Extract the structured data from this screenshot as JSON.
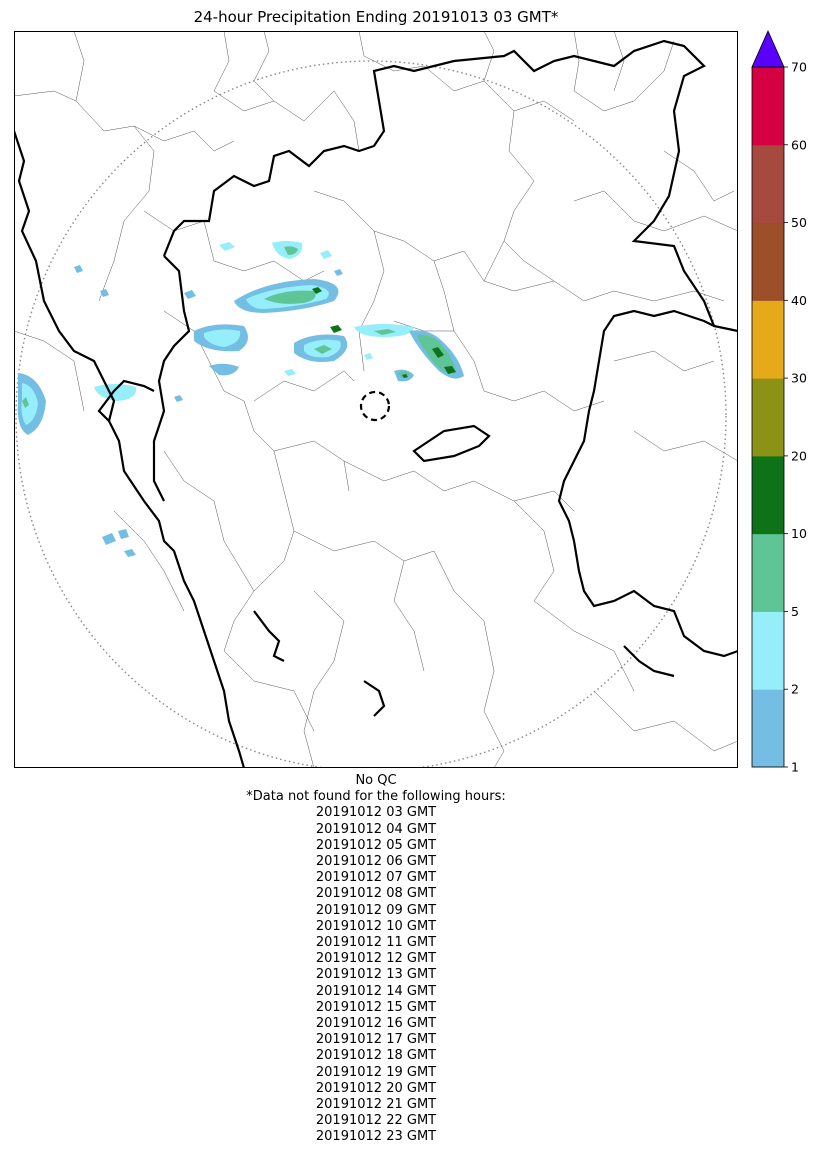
{
  "title": "24-hour Precipitation Ending 20191013 03 GMT*",
  "colorbar": {
    "levels": [
      1,
      2,
      5,
      10,
      20,
      30,
      40,
      50,
      60,
      70
    ],
    "colors": [
      "#74bde3",
      "#95eefa",
      "#5fc597",
      "#0e7318",
      "#8b9215",
      "#e6a91a",
      "#9c4f28",
      "#a64a3f",
      "#d40043"
    ],
    "extend_color": "#5a00ff",
    "tick_labels": [
      "1",
      "2",
      "5",
      "10",
      "20",
      "30",
      "40",
      "50",
      "60",
      "70"
    ]
  },
  "notes": {
    "qc": "No QC",
    "missing_header": "*Data not found for the following hours:",
    "missing_hours": [
      "20191012 03 GMT",
      "20191012 04 GMT",
      "20191012 05 GMT",
      "20191012 06 GMT",
      "20191012 07 GMT",
      "20191012 08 GMT",
      "20191012 09 GMT",
      "20191012 10 GMT",
      "20191012 11 GMT",
      "20191012 12 GMT",
      "20191012 13 GMT",
      "20191012 14 GMT",
      "20191012 15 GMT",
      "20191012 16 GMT",
      "20191012 17 GMT",
      "20191012 18 GMT",
      "20191012 19 GMT",
      "20191012 20 GMT",
      "20191012 21 GMT",
      "20191012 22 GMT",
      "20191012 23 GMT"
    ]
  }
}
